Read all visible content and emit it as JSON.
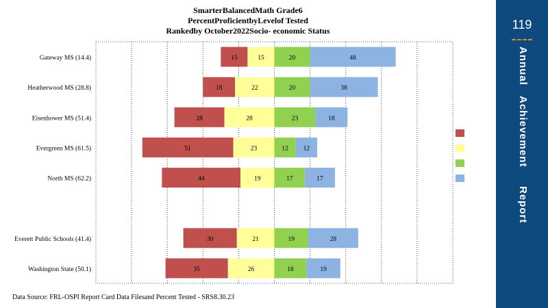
{
  "title": {
    "line1": "SmarterBalancedMath Grade6",
    "line2": "PercentProficientbyLevelof Tested",
    "line3": "Rankedby October2022Socio- economic Status"
  },
  "source": "Data Source: FRL-OSPI Report Card Data Filesand Percent Tested - SRS8.30.23",
  "sidebar": {
    "page_number": "119",
    "words": [
      "Annual",
      "Achievement",
      "Report"
    ]
  },
  "colors": {
    "level1": "#c0504d",
    "level2": "#ffff99",
    "level3": "#92d050",
    "level4": "#8db3e2",
    "sidebar": "#0e4a7e",
    "accent": "#e8842c"
  },
  "chart_data": {
    "type": "bar",
    "orientation": "horizontal-diverging",
    "categories": [
      "Gateway MS (14.4)",
      "Heatherwood  MS (28.8)",
      "Eisenhower MS (51.4)",
      "Evergreen MS (61.5)",
      "North MS (62.2)",
      "",
      "Everett  Public Schools (41.4)",
      "Washington State (50.1)"
    ],
    "series": [
      {
        "values": [
          15,
          18,
          28,
          51,
          44,
          null,
          30,
          35
        ]
      },
      {
        "values": [
          15,
          22,
          28,
          23,
          19,
          null,
          21,
          26
        ]
      },
      {
        "values": [
          20,
          20,
          23,
          12,
          17,
          null,
          19,
          18
        ]
      },
      {
        "values": [
          48,
          38,
          18,
          12,
          17,
          null,
          28,
          19
        ]
      }
    ],
    "xlim": [
      -100,
      100
    ],
    "grid": true,
    "legend": "right"
  }
}
